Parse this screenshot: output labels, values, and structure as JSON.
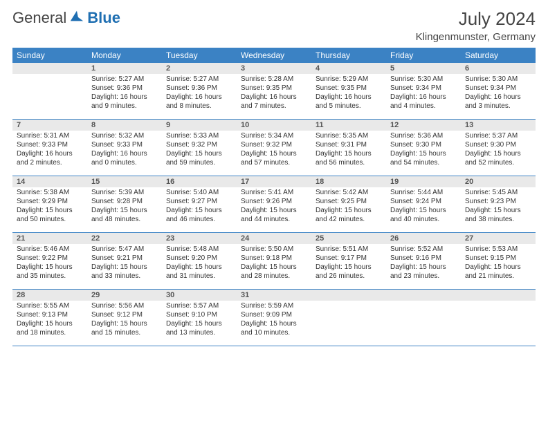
{
  "brand": {
    "part1": "General",
    "part2": "Blue"
  },
  "title": {
    "month_year": "July 2024",
    "location": "Klingenmunster, Germany"
  },
  "style": {
    "header_bg": "#3b82c4",
    "header_text": "#ffffff",
    "daynum_bg": "#e9e9e9",
    "border_color": "#3b82c4",
    "text_color": "#333333",
    "font_size_body": 10,
    "font_size_title": 26,
    "font_size_location": 15,
    "font_size_dow": 12
  },
  "days_of_week": [
    "Sunday",
    "Monday",
    "Tuesday",
    "Wednesday",
    "Thursday",
    "Friday",
    "Saturday"
  ],
  "leading_blanks": 1,
  "calendar": [
    {
      "d": 1,
      "sr": "5:27 AM",
      "ss": "9:36 PM",
      "dl": "16 hours and 9 minutes."
    },
    {
      "d": 2,
      "sr": "5:27 AM",
      "ss": "9:36 PM",
      "dl": "16 hours and 8 minutes."
    },
    {
      "d": 3,
      "sr": "5:28 AM",
      "ss": "9:35 PM",
      "dl": "16 hours and 7 minutes."
    },
    {
      "d": 4,
      "sr": "5:29 AM",
      "ss": "9:35 PM",
      "dl": "16 hours and 5 minutes."
    },
    {
      "d": 5,
      "sr": "5:30 AM",
      "ss": "9:34 PM",
      "dl": "16 hours and 4 minutes."
    },
    {
      "d": 6,
      "sr": "5:30 AM",
      "ss": "9:34 PM",
      "dl": "16 hours and 3 minutes."
    },
    {
      "d": 7,
      "sr": "5:31 AM",
      "ss": "9:33 PM",
      "dl": "16 hours and 2 minutes."
    },
    {
      "d": 8,
      "sr": "5:32 AM",
      "ss": "9:33 PM",
      "dl": "16 hours and 0 minutes."
    },
    {
      "d": 9,
      "sr": "5:33 AM",
      "ss": "9:32 PM",
      "dl": "15 hours and 59 minutes."
    },
    {
      "d": 10,
      "sr": "5:34 AM",
      "ss": "9:32 PM",
      "dl": "15 hours and 57 minutes."
    },
    {
      "d": 11,
      "sr": "5:35 AM",
      "ss": "9:31 PM",
      "dl": "15 hours and 56 minutes."
    },
    {
      "d": 12,
      "sr": "5:36 AM",
      "ss": "9:30 PM",
      "dl": "15 hours and 54 minutes."
    },
    {
      "d": 13,
      "sr": "5:37 AM",
      "ss": "9:30 PM",
      "dl": "15 hours and 52 minutes."
    },
    {
      "d": 14,
      "sr": "5:38 AM",
      "ss": "9:29 PM",
      "dl": "15 hours and 50 minutes."
    },
    {
      "d": 15,
      "sr": "5:39 AM",
      "ss": "9:28 PM",
      "dl": "15 hours and 48 minutes."
    },
    {
      "d": 16,
      "sr": "5:40 AM",
      "ss": "9:27 PM",
      "dl": "15 hours and 46 minutes."
    },
    {
      "d": 17,
      "sr": "5:41 AM",
      "ss": "9:26 PM",
      "dl": "15 hours and 44 minutes."
    },
    {
      "d": 18,
      "sr": "5:42 AM",
      "ss": "9:25 PM",
      "dl": "15 hours and 42 minutes."
    },
    {
      "d": 19,
      "sr": "5:44 AM",
      "ss": "9:24 PM",
      "dl": "15 hours and 40 minutes."
    },
    {
      "d": 20,
      "sr": "5:45 AM",
      "ss": "9:23 PM",
      "dl": "15 hours and 38 minutes."
    },
    {
      "d": 21,
      "sr": "5:46 AM",
      "ss": "9:22 PM",
      "dl": "15 hours and 35 minutes."
    },
    {
      "d": 22,
      "sr": "5:47 AM",
      "ss": "9:21 PM",
      "dl": "15 hours and 33 minutes."
    },
    {
      "d": 23,
      "sr": "5:48 AM",
      "ss": "9:20 PM",
      "dl": "15 hours and 31 minutes."
    },
    {
      "d": 24,
      "sr": "5:50 AM",
      "ss": "9:18 PM",
      "dl": "15 hours and 28 minutes."
    },
    {
      "d": 25,
      "sr": "5:51 AM",
      "ss": "9:17 PM",
      "dl": "15 hours and 26 minutes."
    },
    {
      "d": 26,
      "sr": "5:52 AM",
      "ss": "9:16 PM",
      "dl": "15 hours and 23 minutes."
    },
    {
      "d": 27,
      "sr": "5:53 AM",
      "ss": "9:15 PM",
      "dl": "15 hours and 21 minutes."
    },
    {
      "d": 28,
      "sr": "5:55 AM",
      "ss": "9:13 PM",
      "dl": "15 hours and 18 minutes."
    },
    {
      "d": 29,
      "sr": "5:56 AM",
      "ss": "9:12 PM",
      "dl": "15 hours and 15 minutes."
    },
    {
      "d": 30,
      "sr": "5:57 AM",
      "ss": "9:10 PM",
      "dl": "15 hours and 13 minutes."
    },
    {
      "d": 31,
      "sr": "5:59 AM",
      "ss": "9:09 PM",
      "dl": "15 hours and 10 minutes."
    }
  ],
  "labels": {
    "sunrise": "Sunrise:",
    "sunset": "Sunset:",
    "daylight": "Daylight:"
  }
}
